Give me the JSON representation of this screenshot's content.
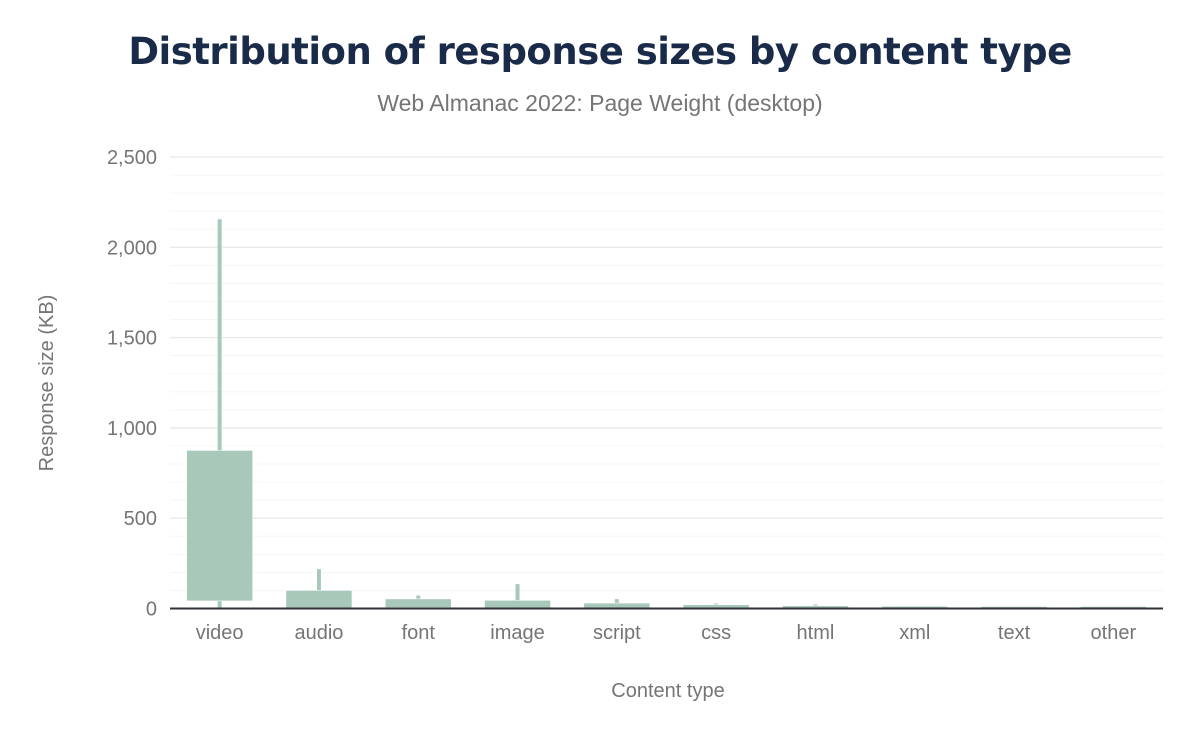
{
  "chart_data": {
    "type": "box",
    "title": "Distribution of response sizes by content type",
    "subtitle": "Web Almanac 2022: Page Weight (desktop)",
    "xlabel": "Content type",
    "ylabel": "Response size (KB)",
    "ylim": [
      0,
      2500
    ],
    "yticks": [
      0,
      500,
      1000,
      1500,
      2000,
      2500
    ],
    "ytick_labels": [
      "0",
      "500",
      "1,000",
      "1,500",
      "2,000",
      "2,500"
    ],
    "grid": true,
    "color": "#a8c9b9",
    "categories": [
      "video",
      "audio",
      "font",
      "image",
      "script",
      "css",
      "html",
      "xml",
      "text",
      "other"
    ],
    "series": [
      {
        "p10": [
          2,
          1,
          1,
          1,
          1,
          1,
          1,
          1,
          1,
          1
        ],
        "p25": [
          42,
          3,
          5,
          4,
          4,
          3,
          2,
          2,
          2,
          2
        ],
        "p75": [
          875,
          100,
          53,
          45,
          30,
          21,
          15,
          12,
          11,
          11
        ],
        "p90": [
          2155,
          218,
          72,
          135,
          52,
          28,
          23,
          12,
          11,
          11
        ]
      }
    ]
  }
}
